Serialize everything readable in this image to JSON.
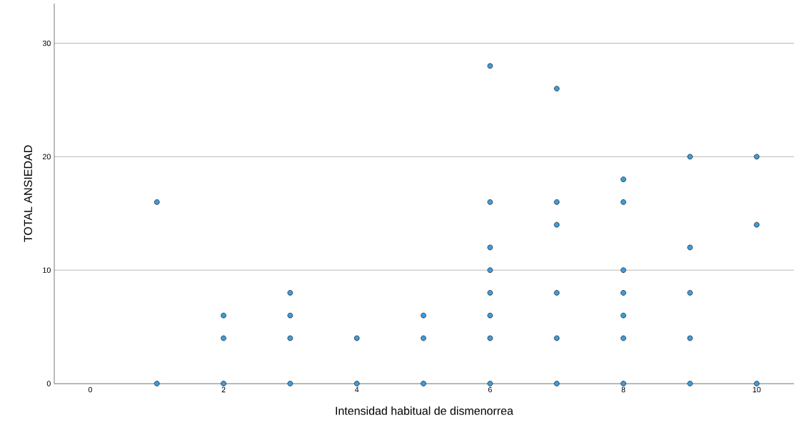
{
  "chart_data": {
    "type": "scatter",
    "xlabel": "Intensidad habitual de dismenorrea",
    "ylabel": "TOTAL ANSIEDAD",
    "series": [
      {
        "color": "#3a9ee0",
        "x": [
          1,
          1,
          2,
          2,
          2,
          3,
          3,
          3,
          3,
          4,
          4,
          5,
          5,
          5,
          6,
          6,
          6,
          6,
          6,
          6,
          6,
          6,
          7,
          7,
          7,
          7,
          7,
          7,
          8,
          8,
          8,
          8,
          8,
          8,
          8,
          9,
          9,
          9,
          9,
          9,
          10,
          10,
          10
        ],
        "values": [
          16,
          0,
          6,
          4,
          0,
          8,
          6,
          4,
          0,
          4,
          0,
          6,
          4,
          0,
          28,
          16,
          12,
          10,
          8,
          6,
          4,
          0,
          26,
          16,
          14,
          8,
          4,
          0,
          18,
          16,
          10,
          8,
          6,
          4,
          0,
          20,
          12,
          8,
          4,
          0,
          20,
          14,
          0
        ]
      }
    ],
    "xlim": [
      -0.54,
      10.56
    ],
    "ylim": [
      0,
      33.5
    ],
    "xticks": [
      0,
      2,
      4,
      6,
      8,
      10
    ],
    "yticks": [
      0,
      10,
      20,
      30
    ],
    "grid": "y",
    "marker": "circle"
  }
}
